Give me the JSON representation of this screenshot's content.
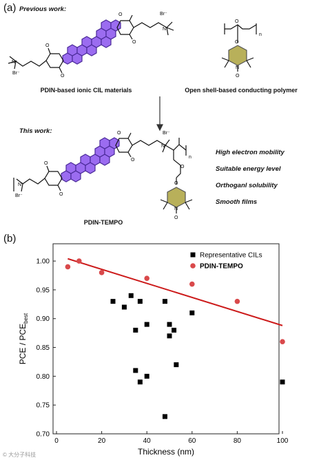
{
  "panel_a": {
    "label": "(a)",
    "previous_heading": "Previous work:",
    "this_heading": "This work:",
    "structures": {
      "pdin_cil": {
        "caption": "PDIN-based ionic CIL materials",
        "counter_ion": "Br⁻",
        "cation": "N⁺",
        "carbonyl": "O"
      },
      "polymer": {
        "caption": "Open shell-based conducting polymer",
        "repeat_subscript": "n",
        "oxygen": "O",
        "nitroxide": "N",
        "radical_o": "O"
      },
      "pdin_tempo": {
        "caption": "PDIN-TEMPO",
        "counter_ion": "Br⁻",
        "cation": "N⁺",
        "repeat_subscript": "n",
        "carbonyl": "O",
        "nitroxide": "N",
        "radical_o": "O"
      }
    },
    "features": [
      "High electron mobility",
      "Suitable energy level",
      "Orthoganl solubility",
      "Smooth films"
    ],
    "colors": {
      "perylene": "#9b6cf0",
      "perylene_stroke": "#4a2a98",
      "tempo": "#b8b05a",
      "tempo_stroke": "#555"
    }
  },
  "panel_b": {
    "label": "(b)",
    "chart_data": {
      "type": "scatter",
      "xlabel": "Thickness (nm)",
      "ylabel": "PCE / PCE",
      "ylabel_sub": "best",
      "xlim": [
        0,
        100
      ],
      "ylim": [
        0.7,
        1.03
      ],
      "xticks": [
        "0",
        "20",
        "40",
        "60",
        "80",
        "100"
      ],
      "yticks": [
        "0.70",
        "0.75",
        "0.80",
        "0.85",
        "0.90",
        "0.95",
        "1.00"
      ],
      "series": [
        {
          "name": "Representative CILs",
          "marker": "square",
          "color": "#000000",
          "points": [
            [
              25,
              0.93
            ],
            [
              30,
              0.92
            ],
            [
              33,
              0.94
            ],
            [
              35,
              0.88
            ],
            [
              37,
              0.93
            ],
            [
              40,
              0.89
            ],
            [
              35,
              0.81
            ],
            [
              37,
              0.79
            ],
            [
              40,
              0.8
            ],
            [
              48,
              0.93
            ],
            [
              50,
              0.89
            ],
            [
              50,
              0.87
            ],
            [
              52,
              0.88
            ],
            [
              53,
              0.82
            ],
            [
              60,
              0.91
            ],
            [
              48,
              0.73
            ],
            [
              100,
              0.79
            ]
          ]
        },
        {
          "name": "PDIN-TEMPO",
          "marker": "circle",
          "color": "#d9494b",
          "points": [
            [
              5,
              0.99
            ],
            [
              10,
              1.0
            ],
            [
              20,
              0.98
            ],
            [
              40,
              0.97
            ],
            [
              60,
              0.96
            ],
            [
              80,
              0.93
            ],
            [
              100,
              0.86
            ]
          ]
        }
      ],
      "fit_line": {
        "color": "#cc1a1a",
        "x": [
          5,
          100
        ],
        "y": [
          1.004,
          0.888
        ]
      },
      "legend": "top-right"
    }
  },
  "watermark": "© 大分子科技"
}
